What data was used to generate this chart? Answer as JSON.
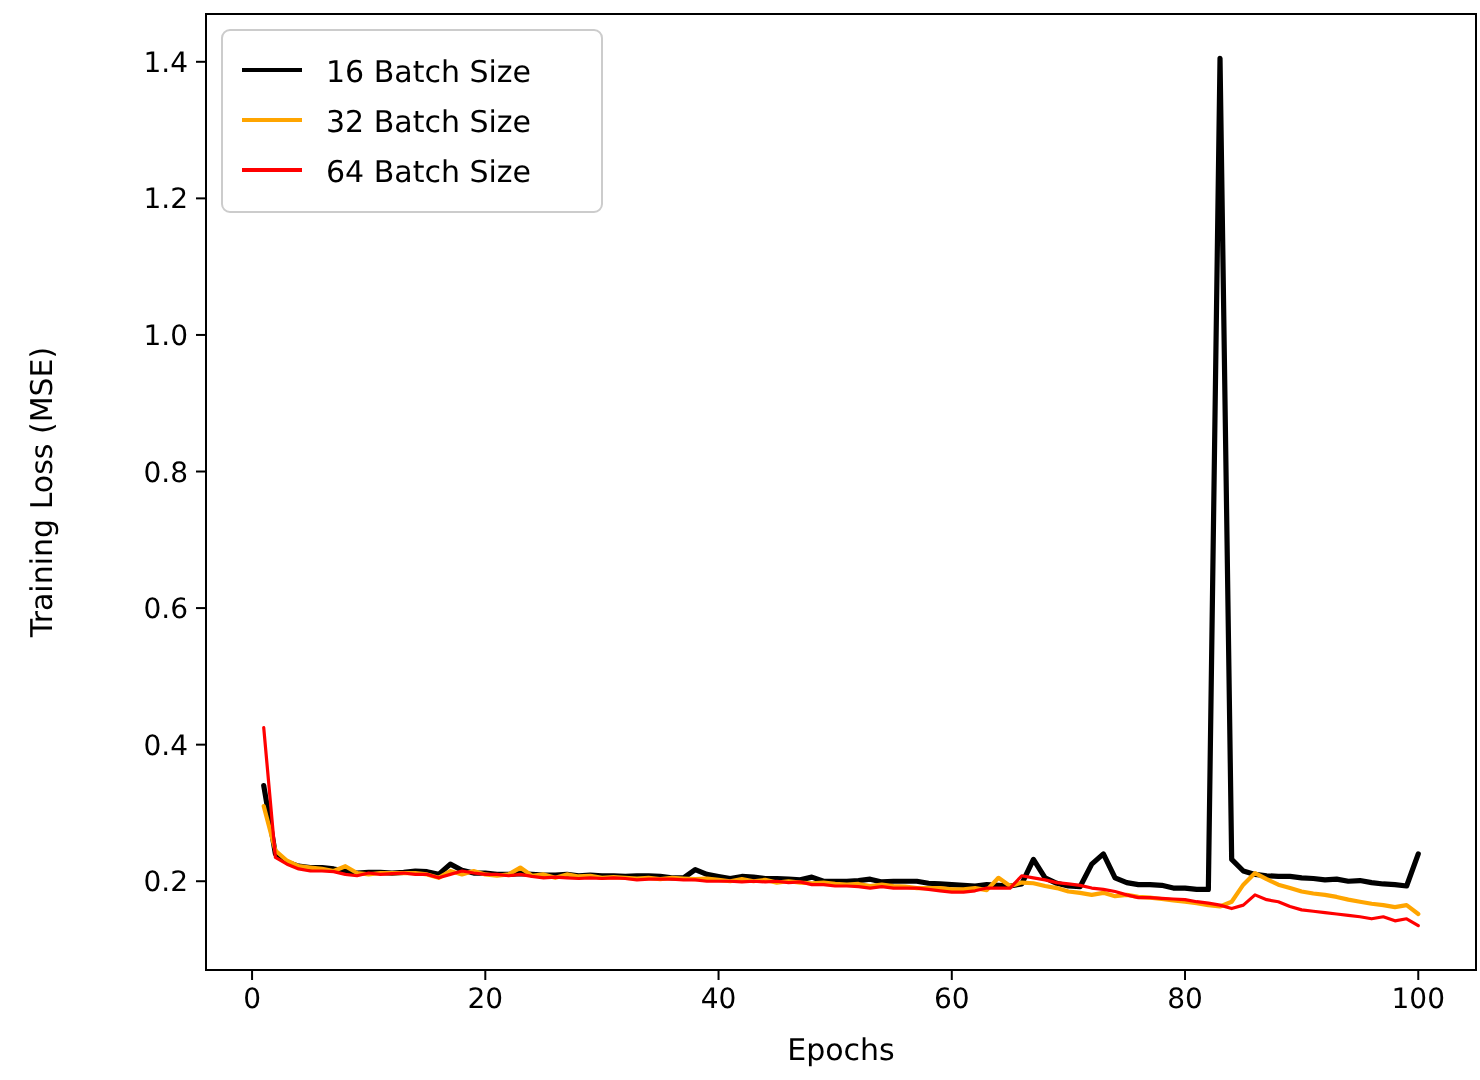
{
  "chart_data": {
    "type": "line",
    "xlabel": "Epochs",
    "ylabel": "Training Loss (MSE)",
    "x": [
      1,
      2,
      3,
      4,
      5,
      6,
      7,
      8,
      9,
      10,
      11,
      12,
      13,
      14,
      15,
      16,
      17,
      18,
      19,
      20,
      21,
      22,
      23,
      24,
      25,
      26,
      27,
      28,
      29,
      30,
      31,
      32,
      33,
      34,
      35,
      36,
      37,
      38,
      39,
      40,
      41,
      42,
      43,
      44,
      45,
      46,
      47,
      48,
      49,
      50,
      51,
      52,
      53,
      54,
      55,
      56,
      57,
      58,
      59,
      60,
      61,
      62,
      63,
      64,
      65,
      66,
      67,
      68,
      69,
      70,
      71,
      72,
      73,
      74,
      75,
      76,
      77,
      78,
      79,
      80,
      81,
      82,
      83,
      84,
      85,
      86,
      87,
      88,
      89,
      90,
      91,
      92,
      93,
      94,
      95,
      96,
      97,
      98,
      99,
      100
    ],
    "series": [
      {
        "name": "16 Batch Size",
        "color": "#000000",
        "values": [
          0.34,
          0.24,
          0.228,
          0.222,
          0.22,
          0.22,
          0.218,
          0.215,
          0.212,
          0.213,
          0.213,
          0.212,
          0.213,
          0.215,
          0.214,
          0.21,
          0.225,
          0.216,
          0.212,
          0.212,
          0.21,
          0.21,
          0.211,
          0.21,
          0.209,
          0.209,
          0.21,
          0.208,
          0.209,
          0.208,
          0.208,
          0.207,
          0.208,
          0.208,
          0.207,
          0.205,
          0.205,
          0.217,
          0.21,
          0.207,
          0.204,
          0.207,
          0.206,
          0.204,
          0.204,
          0.203,
          0.202,
          0.206,
          0.2,
          0.2,
          0.2,
          0.201,
          0.203,
          0.199,
          0.2,
          0.2,
          0.2,
          0.197,
          0.196,
          0.195,
          0.194,
          0.193,
          0.195,
          0.194,
          0.193,
          0.196,
          0.232,
          0.205,
          0.197,
          0.193,
          0.192,
          0.225,
          0.24,
          0.205,
          0.198,
          0.195,
          0.195,
          0.194,
          0.19,
          0.19,
          0.188,
          0.188,
          1.405,
          0.232,
          0.215,
          0.21,
          0.208,
          0.207,
          0.207,
          0.205,
          0.204,
          0.202,
          0.203,
          0.2,
          0.201,
          0.198,
          0.196,
          0.195,
          0.193,
          0.24
        ]
      },
      {
        "name": "32 Batch Size",
        "color": "#ffa500",
        "values": [
          0.31,
          0.245,
          0.23,
          0.222,
          0.22,
          0.218,
          0.215,
          0.222,
          0.212,
          0.21,
          0.212,
          0.212,
          0.212,
          0.212,
          0.21,
          0.205,
          0.215,
          0.21,
          0.215,
          0.21,
          0.208,
          0.21,
          0.22,
          0.208,
          0.21,
          0.205,
          0.21,
          0.207,
          0.208,
          0.205,
          0.206,
          0.205,
          0.204,
          0.205,
          0.203,
          0.205,
          0.204,
          0.203,
          0.204,
          0.202,
          0.2,
          0.203,
          0.2,
          0.202,
          0.198,
          0.2,
          0.198,
          0.197,
          0.198,
          0.196,
          0.195,
          0.196,
          0.193,
          0.195,
          0.193,
          0.192,
          0.19,
          0.19,
          0.19,
          0.188,
          0.188,
          0.19,
          0.187,
          0.205,
          0.193,
          0.198,
          0.197,
          0.193,
          0.19,
          0.185,
          0.183,
          0.18,
          0.183,
          0.178,
          0.18,
          0.177,
          0.176,
          0.174,
          0.172,
          0.17,
          0.168,
          0.165,
          0.163,
          0.17,
          0.195,
          0.212,
          0.203,
          0.195,
          0.19,
          0.185,
          0.182,
          0.18,
          0.177,
          0.173,
          0.17,
          0.167,
          0.165,
          0.162,
          0.165,
          0.152
        ]
      },
      {
        "name": "64 Batch Size",
        "color": "#ff0000",
        "values": [
          0.425,
          0.235,
          0.225,
          0.218,
          0.215,
          0.215,
          0.214,
          0.21,
          0.208,
          0.212,
          0.21,
          0.211,
          0.212,
          0.21,
          0.21,
          0.205,
          0.21,
          0.215,
          0.212,
          0.21,
          0.21,
          0.208,
          0.21,
          0.207,
          0.205,
          0.206,
          0.205,
          0.204,
          0.205,
          0.204,
          0.205,
          0.204,
          0.202,
          0.203,
          0.203,
          0.203,
          0.202,
          0.202,
          0.2,
          0.2,
          0.2,
          0.199,
          0.2,
          0.199,
          0.2,
          0.198,
          0.199,
          0.195,
          0.195,
          0.193,
          0.193,
          0.192,
          0.19,
          0.192,
          0.19,
          0.19,
          0.19,
          0.188,
          0.186,
          0.184,
          0.184,
          0.186,
          0.19,
          0.19,
          0.19,
          0.208,
          0.205,
          0.202,
          0.198,
          0.196,
          0.194,
          0.19,
          0.188,
          0.185,
          0.18,
          0.176,
          0.176,
          0.175,
          0.174,
          0.173,
          0.17,
          0.168,
          0.165,
          0.16,
          0.165,
          0.18,
          0.173,
          0.17,
          0.163,
          0.158,
          0.156,
          0.154,
          0.152,
          0.15,
          0.148,
          0.145,
          0.148,
          0.142,
          0.145,
          0.135
        ]
      }
    ],
    "xlim": [
      -3.95,
      104.95
    ],
    "ylim": [
      0.07,
      1.47
    ],
    "xticks": [
      0,
      20,
      40,
      60,
      80,
      100
    ],
    "yticks": [
      {
        "value": 0.2,
        "label": "0.2"
      },
      {
        "value": 0.4,
        "label": "0.4"
      },
      {
        "value": 0.6,
        "label": "0.6"
      },
      {
        "value": 0.8,
        "label": "0.8"
      },
      {
        "value": 1.0,
        "label": "1.0"
      },
      {
        "value": 1.2,
        "label": "1.2"
      },
      {
        "value": 1.4,
        "label": "1.4"
      }
    ],
    "legend": "top left",
    "grid": false
  }
}
